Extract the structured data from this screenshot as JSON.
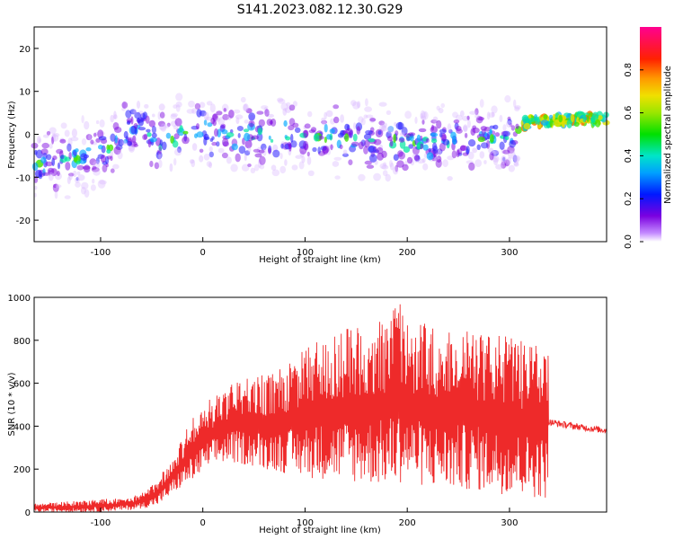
{
  "figure": {
    "title": "S141.2023.082.12.30.G29"
  },
  "chart_data": [
    {
      "type": "heatmap",
      "xlabel": "Height of straight line (km)",
      "ylabel": "Frequency (Hz)",
      "xlim": [
        -165,
        395
      ],
      "ylim": [
        -25,
        25
      ],
      "xticks": [
        -100,
        0,
        100,
        200,
        300
      ],
      "yticks": [
        -20,
        -10,
        0,
        10,
        20
      ],
      "colorbar": {
        "label": "Normalized spectral amplitude",
        "range": [
          0,
          1
        ],
        "ticks": [
          0.0,
          0.2,
          0.4,
          0.6,
          0.8
        ]
      },
      "ridge": {
        "x": [
          -165,
          -140,
          -110,
          -90,
          -75,
          -60,
          -50,
          -35,
          -20,
          -5,
          10,
          40,
          80,
          120,
          160,
          200,
          240,
          280,
          305,
          310,
          330,
          360,
          395
        ],
        "y": [
          -7,
          -6,
          -5,
          -3,
          1,
          2,
          0,
          -2,
          0,
          1,
          0,
          0,
          0,
          -1,
          -1,
          -2,
          -2,
          -1,
          -1,
          2.5,
          3,
          3.5,
          3.5
        ]
      },
      "grid": false
    },
    {
      "type": "line",
      "xlabel": "Height of straight line (km)",
      "ylabel": "SNR (10 * v/v)",
      "xlim": [
        -165,
        395
      ],
      "ylim": [
        0,
        1000
      ],
      "xticks": [
        -100,
        0,
        100,
        200,
        300
      ],
      "yticks": [
        0,
        200,
        400,
        600,
        800,
        1000
      ],
      "color": "#ee2a2a",
      "series": [
        {
          "x": [
            -165,
            -150,
            -130,
            -110,
            -90,
            -70,
            -55,
            -45,
            -35,
            -25,
            -15,
            -5,
            5,
            15,
            25,
            40,
            60,
            80,
            100,
            120,
            140,
            160,
            180,
            190,
            200,
            220,
            240,
            260,
            280,
            300,
            320,
            335,
            338,
            350,
            370,
            395
          ],
          "y": [
            10,
            15,
            20,
            25,
            30,
            40,
            50,
            90,
            150,
            200,
            250,
            270,
            300,
            350,
            380,
            400,
            410,
            420,
            430,
            440,
            445,
            450,
            455,
            460,
            455,
            450,
            445,
            440,
            435,
            430,
            420,
            410,
            420,
            410,
            395,
            380
          ]
        }
      ],
      "envelope_top": {
        "x": [
          -165,
          -130,
          -100,
          -70,
          -55,
          -45,
          -35,
          -25,
          -15,
          -5,
          5,
          15,
          25,
          40,
          60,
          80,
          100,
          120,
          140,
          160,
          180,
          190,
          200,
          220,
          240,
          260,
          280,
          300,
          320,
          335
        ],
        "y": [
          40,
          50,
          60,
          70,
          100,
          150,
          220,
          300,
          400,
          470,
          520,
          560,
          600,
          620,
          640,
          680,
          760,
          820,
          860,
          880,
          900,
          1000,
          900,
          880,
          860,
          880,
          840,
          820,
          800,
          780
        ]
      },
      "envelope_bottom": {
        "x": [
          -165,
          -130,
          -100,
          -70,
          -55,
          -45,
          -35,
          -25,
          -15,
          -5,
          5,
          15,
          25,
          40,
          60,
          80,
          100,
          120,
          140,
          160,
          180,
          190,
          200,
          220,
          240,
          260,
          280,
          300,
          320,
          335
        ],
        "y": [
          0,
          0,
          0,
          10,
          20,
          30,
          60,
          100,
          130,
          160,
          200,
          220,
          230,
          220,
          200,
          180,
          160,
          150,
          140,
          130,
          120,
          130,
          140,
          110,
          100,
          100,
          90,
          80,
          70,
          60
        ]
      },
      "grid": false
    }
  ]
}
